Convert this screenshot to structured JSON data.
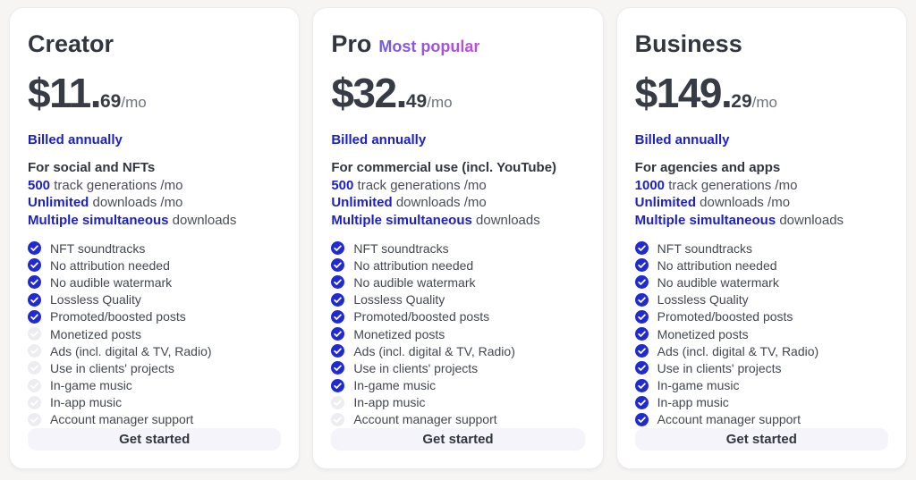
{
  "theme": {
    "page_bg": "#f6f5f4",
    "card_bg": "#ffffff",
    "link_blue": "#1b1fc9",
    "check_blue": "#1f2ad4",
    "unchecked_gray": "#ededf1",
    "badge_gradient_start": "#6f5ae4",
    "badge_gradient_end": "#c44ee0",
    "price_color": "#363b46",
    "button_bg": "#f5f4fa"
  },
  "plans": [
    {
      "name": "Creator",
      "badge": "",
      "price_main": "$11.",
      "price_cents": "69",
      "price_period": "/mo",
      "billing": "Billed annually",
      "audience": "For social and NFTs",
      "specs": [
        {
          "strong": "500",
          "rest": " track generations /mo"
        },
        {
          "strong": "Unlimited",
          "rest": " downloads /mo"
        },
        {
          "strong": "Multiple simultaneous",
          "rest": " downloads"
        }
      ],
      "features": [
        {
          "label": "NFT soundtracks",
          "included": true
        },
        {
          "label": "No attribution needed",
          "included": true
        },
        {
          "label": "No audible watermark",
          "included": true
        },
        {
          "label": "Lossless Quality",
          "included": true
        },
        {
          "label": "Promoted/boosted posts",
          "included": true
        },
        {
          "label": "Monetized posts",
          "included": false
        },
        {
          "label": "Ads (incl. digital & TV, Radio)",
          "included": false
        },
        {
          "label": "Use in clients' projects",
          "included": false
        },
        {
          "label": "In-game music",
          "included": false
        },
        {
          "label": "In-app music",
          "included": false
        },
        {
          "label": "Account manager support",
          "included": false
        }
      ],
      "cta": "Get started"
    },
    {
      "name": "Pro",
      "badge": "Most popular",
      "price_main": "$32.",
      "price_cents": "49",
      "price_period": "/mo",
      "billing": "Billed annually",
      "audience": "For commercial use (incl. YouTube)",
      "specs": [
        {
          "strong": "500",
          "rest": " track generations /mo"
        },
        {
          "strong": "Unlimited",
          "rest": " downloads /mo"
        },
        {
          "strong": "Multiple simultaneous",
          "rest": " downloads"
        }
      ],
      "features": [
        {
          "label": "NFT soundtracks",
          "included": true
        },
        {
          "label": "No attribution needed",
          "included": true
        },
        {
          "label": "No audible watermark",
          "included": true
        },
        {
          "label": "Lossless Quality",
          "included": true
        },
        {
          "label": "Promoted/boosted posts",
          "included": true
        },
        {
          "label": "Monetized posts",
          "included": true
        },
        {
          "label": "Ads (incl. digital & TV, Radio)",
          "included": true
        },
        {
          "label": "Use in clients' projects",
          "included": true
        },
        {
          "label": "In-game music",
          "included": true
        },
        {
          "label": "In-app music",
          "included": false
        },
        {
          "label": "Account manager support",
          "included": false
        }
      ],
      "cta": "Get started"
    },
    {
      "name": "Business",
      "badge": "",
      "price_main": "$149.",
      "price_cents": "29",
      "price_period": "/mo",
      "billing": "Billed annually",
      "audience": "For agencies and apps",
      "specs": [
        {
          "strong": "1000",
          "rest": " track generations /mo"
        },
        {
          "strong": "Unlimited",
          "rest": " downloads /mo"
        },
        {
          "strong": "Multiple simultaneous",
          "rest": " downloads"
        }
      ],
      "features": [
        {
          "label": "NFT soundtracks",
          "included": true
        },
        {
          "label": "No attribution needed",
          "included": true
        },
        {
          "label": "No audible watermark",
          "included": true
        },
        {
          "label": "Lossless Quality",
          "included": true
        },
        {
          "label": "Promoted/boosted posts",
          "included": true
        },
        {
          "label": "Monetized posts",
          "included": true
        },
        {
          "label": "Ads (incl. digital & TV, Radio)",
          "included": true
        },
        {
          "label": "Use in clients' projects",
          "included": true
        },
        {
          "label": "In-game music",
          "included": true
        },
        {
          "label": "In-app music",
          "included": true
        },
        {
          "label": "Account manager support",
          "included": true
        }
      ],
      "cta": "Get started"
    }
  ]
}
